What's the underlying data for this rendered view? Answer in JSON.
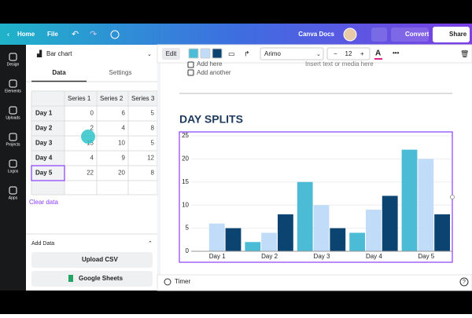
{
  "topbar": {
    "home": "Home",
    "file": "File",
    "doc_name": "Canva Docs",
    "convert": "Convert",
    "share": "Share"
  },
  "sidebar": [
    "Design",
    "Elements",
    "Uploads",
    "Projects",
    "Logos",
    "Apps"
  ],
  "panel": {
    "chart_type": "Bar chart",
    "tabs": [
      "Data",
      "Settings"
    ],
    "clear": "Clear data",
    "add_data": "Add Data",
    "upload": "Upload CSV",
    "sheets": "Google Sheets"
  },
  "toolbar": {
    "edit": "Edit",
    "font": "Arimo",
    "font_size": 12
  },
  "doc": {
    "items": [
      "Add here",
      "Add another"
    ],
    "hint": "Insert text or media here"
  },
  "chart": {
    "type": "bar",
    "title": "DAY SPLITS",
    "categories": [
      "Day 1",
      "Day 2",
      "Day 3",
      "Day 4",
      "Day 5"
    ],
    "series": [
      {
        "name": "Series 1",
        "color": "#4cbcd6",
        "values": [
          0,
          2,
          15,
          4,
          22
        ]
      },
      {
        "name": "Series 2",
        "color": "#c0dcf8",
        "values": [
          6,
          4,
          10,
          9,
          20
        ]
      },
      {
        "name": "Series 3",
        "color": "#0b4470",
        "values": [
          5,
          8,
          5,
          12,
          8
        ]
      }
    ],
    "ylim": [
      0,
      25
    ],
    "yticks": [
      0,
      5,
      10,
      15,
      20,
      25
    ],
    "grid": true
  },
  "footer": {
    "timer": "Timer"
  }
}
